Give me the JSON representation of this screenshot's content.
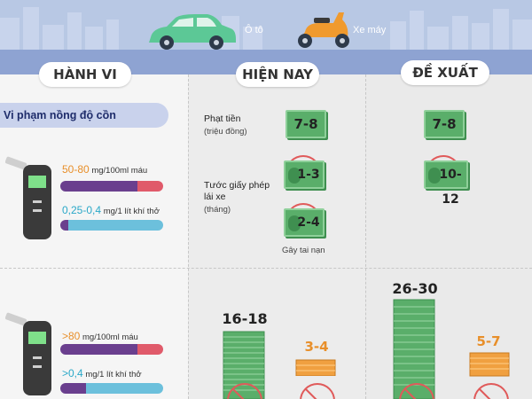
{
  "header": {
    "car_label": "Ô tô",
    "moto_label": "Xe máy",
    "colors": {
      "car": "#5cc896",
      "moto": "#f09a2e",
      "sky": "#b8c8e4",
      "road": "#8ea3d2"
    }
  },
  "columns": {
    "behavior": "HÀNH VI",
    "current": "HIỆN NAY",
    "proposed": "ĐỀ XUẤT"
  },
  "section": {
    "title": "Vi phạm nồng độ cồn"
  },
  "row1": {
    "blood": {
      "value": "50-80",
      "unit": "mg/100ml máu"
    },
    "breath": {
      "value": "0,25-0,4",
      "unit": "mg/1 lít khí thở"
    },
    "fine_label": "Phạt tiền",
    "fine_unit": "(triệu đồng)",
    "license_label": "Tước giấy phép lái xe",
    "license_unit": "(tháng)",
    "accident_label": "Gây tai nạn",
    "current_fine": "7-8",
    "current_license": "1-3",
    "current_license_accident": "2-4",
    "proposed_fine": "7-8",
    "proposed_license": "10-12"
  },
  "row2": {
    "blood": {
      "value": ">80",
      "unit": "mg/100ml máu"
    },
    "breath": {
      "value": ">0,4",
      "unit": "mg/1 lít khí thở"
    },
    "current_car": "16-18",
    "current_moto": "3-4",
    "proposed_car": "26-30",
    "proposed_moto": "5-7"
  },
  "levels": {
    "row1_blood_fill": 0.75,
    "row1_breath_fill": 0.08,
    "row2_blood_fill": 0.75,
    "row2_breath_fill": 0.25
  }
}
